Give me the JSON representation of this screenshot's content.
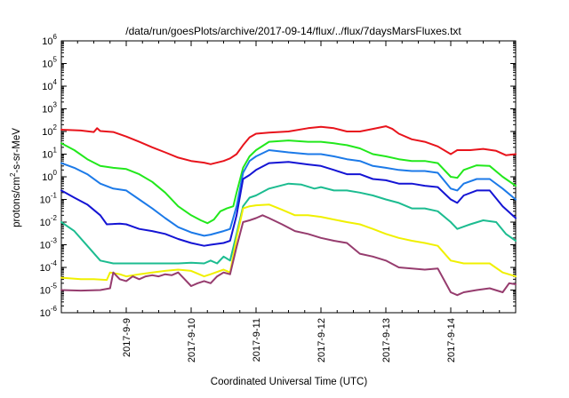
{
  "chart_data": {
    "type": "line",
    "title": "/data/run/goesPlots/archive/2017-09-14/flux/../flux/7daysMarsFluxes.txt",
    "xlabel": "Coordinated Universal Time (UTC)",
    "ylabel": "protons/cm2-s-sr-MeV",
    "ylabel_parts": {
      "a": "protons/cm",
      "b": "2",
      "c": "-s-sr-MeV"
    },
    "yscale": "log",
    "ylim": [
      1e-06,
      1000000.0
    ],
    "y_tick_exponents": [
      "-6",
      "-5",
      "-4",
      "-3",
      "-2",
      "-1",
      "0",
      "1",
      "2",
      "3",
      "4",
      "5",
      "6"
    ],
    "y_tick_base": "10",
    "xlim": [
      0,
      7
    ],
    "x_ticks": [
      {
        "x": 1,
        "label": "2017-9-9"
      },
      {
        "x": 2,
        "label": "2017-9-10"
      },
      {
        "x": 3,
        "label": "2017-9-11"
      },
      {
        "x": 4,
        "label": "2017-9-12"
      },
      {
        "x": 5,
        "label": "2017-9-13"
      },
      {
        "x": 6,
        "label": "2017-9-14"
      }
    ],
    "grid": false,
    "series": [
      {
        "color": "#e8141c",
        "points": [
          [
            0,
            120
          ],
          [
            0.3,
            110
          ],
          [
            0.5,
            95
          ],
          [
            0.55,
            140
          ],
          [
            0.6,
            105
          ],
          [
            0.8,
            95
          ],
          [
            1.0,
            60
          ],
          [
            1.2,
            35
          ],
          [
            1.4,
            20
          ],
          [
            1.6,
            12
          ],
          [
            1.8,
            7
          ],
          [
            2.0,
            5
          ],
          [
            2.2,
            4.2
          ],
          [
            2.3,
            3.6
          ],
          [
            2.5,
            5
          ],
          [
            2.6,
            6.5
          ],
          [
            2.7,
            10
          ],
          [
            2.8,
            25
          ],
          [
            2.9,
            55
          ],
          [
            3.0,
            80
          ],
          [
            3.2,
            90
          ],
          [
            3.5,
            100
          ],
          [
            3.8,
            140
          ],
          [
            4.0,
            160
          ],
          [
            4.2,
            140
          ],
          [
            4.4,
            100
          ],
          [
            4.6,
            100
          ],
          [
            4.8,
            130
          ],
          [
            5.0,
            170
          ],
          [
            5.1,
            130
          ],
          [
            5.2,
            80
          ],
          [
            5.4,
            45
          ],
          [
            5.6,
            35
          ],
          [
            5.8,
            22
          ],
          [
            6.0,
            10
          ],
          [
            6.1,
            15
          ],
          [
            6.3,
            15
          ],
          [
            6.5,
            17
          ],
          [
            6.7,
            14
          ],
          [
            6.85,
            9
          ],
          [
            7.0,
            10
          ]
        ]
      },
      {
        "color": "#22e81c",
        "points": [
          [
            0,
            30
          ],
          [
            0.2,
            15
          ],
          [
            0.4,
            6
          ],
          [
            0.6,
            3
          ],
          [
            0.8,
            2.5
          ],
          [
            1.0,
            2.2
          ],
          [
            1.2,
            1.3
          ],
          [
            1.4,
            0.6
          ],
          [
            1.6,
            0.2
          ],
          [
            1.8,
            0.05
          ],
          [
            2.0,
            0.02
          ],
          [
            2.15,
            0.012
          ],
          [
            2.25,
            0.009
          ],
          [
            2.35,
            0.013
          ],
          [
            2.45,
            0.03
          ],
          [
            2.55,
            0.04
          ],
          [
            2.65,
            0.05
          ],
          [
            2.7,
            0.2
          ],
          [
            2.8,
            2.5
          ],
          [
            2.9,
            8
          ],
          [
            3.0,
            15
          ],
          [
            3.2,
            35
          ],
          [
            3.5,
            40
          ],
          [
            3.8,
            35
          ],
          [
            4.0,
            35
          ],
          [
            4.2,
            30
          ],
          [
            4.4,
            25
          ],
          [
            4.6,
            18
          ],
          [
            4.8,
            10
          ],
          [
            5.0,
            8
          ],
          [
            5.2,
            6
          ],
          [
            5.4,
            5
          ],
          [
            5.6,
            5
          ],
          [
            5.8,
            4
          ],
          [
            6.0,
            1.0
          ],
          [
            6.1,
            0.9
          ],
          [
            6.2,
            2
          ],
          [
            6.4,
            3.2
          ],
          [
            6.6,
            3
          ],
          [
            6.8,
            1.0
          ],
          [
            7.0,
            0.4
          ]
        ]
      },
      {
        "color": "#1c7ae8",
        "points": [
          [
            0,
            4
          ],
          [
            0.2,
            2.5
          ],
          [
            0.4,
            1.3
          ],
          [
            0.6,
            0.5
          ],
          [
            0.8,
            0.3
          ],
          [
            1.0,
            0.25
          ],
          [
            1.2,
            0.1
          ],
          [
            1.4,
            0.04
          ],
          [
            1.6,
            0.015
          ],
          [
            1.8,
            0.006
          ],
          [
            2.0,
            0.0035
          ],
          [
            2.2,
            0.0025
          ],
          [
            2.3,
            0.0028
          ],
          [
            2.5,
            0.004
          ],
          [
            2.6,
            0.005
          ],
          [
            2.7,
            0.05
          ],
          [
            2.8,
            1.5
          ],
          [
            2.9,
            5
          ],
          [
            3.0,
            8
          ],
          [
            3.2,
            15
          ],
          [
            3.5,
            12
          ],
          [
            3.8,
            10
          ],
          [
            4.0,
            10
          ],
          [
            4.2,
            8
          ],
          [
            4.4,
            6
          ],
          [
            4.6,
            5
          ],
          [
            4.8,
            3
          ],
          [
            5.0,
            2.5
          ],
          [
            5.2,
            2
          ],
          [
            5.4,
            1.8
          ],
          [
            5.6,
            1.8
          ],
          [
            5.8,
            1.5
          ],
          [
            6.0,
            0.3
          ],
          [
            6.1,
            0.25
          ],
          [
            6.2,
            0.5
          ],
          [
            6.4,
            0.8
          ],
          [
            6.6,
            0.8
          ],
          [
            6.8,
            0.3
          ],
          [
            7.0,
            0.1
          ]
        ]
      },
      {
        "color": "#1414d4",
        "points": [
          [
            0,
            0.25
          ],
          [
            0.2,
            0.12
          ],
          [
            0.4,
            0.06
          ],
          [
            0.6,
            0.02
          ],
          [
            0.7,
            0.008
          ],
          [
            0.9,
            0.0085
          ],
          [
            1.0,
            0.008
          ],
          [
            1.2,
            0.005
          ],
          [
            1.4,
            0.004
          ],
          [
            1.6,
            0.003
          ],
          [
            1.8,
            0.0018
          ],
          [
            2.0,
            0.0012
          ],
          [
            2.2,
            0.0009
          ],
          [
            2.3,
            0.001
          ],
          [
            2.5,
            0.0012
          ],
          [
            2.6,
            0.0015
          ],
          [
            2.7,
            0.02
          ],
          [
            2.8,
            0.8
          ],
          [
            2.9,
            1.2
          ],
          [
            3.0,
            2
          ],
          [
            3.2,
            4
          ],
          [
            3.5,
            4.5
          ],
          [
            3.8,
            3.5
          ],
          [
            4.0,
            3
          ],
          [
            4.2,
            2
          ],
          [
            4.4,
            1.3
          ],
          [
            4.6,
            1.3
          ],
          [
            4.8,
            0.8
          ],
          [
            5.0,
            0.7
          ],
          [
            5.2,
            0.5
          ],
          [
            5.4,
            0.5
          ],
          [
            5.6,
            0.4
          ],
          [
            5.8,
            0.35
          ],
          [
            6.0,
            0.1
          ],
          [
            6.1,
            0.07
          ],
          [
            6.2,
            0.15
          ],
          [
            6.4,
            0.25
          ],
          [
            6.6,
            0.25
          ],
          [
            6.8,
            0.05
          ],
          [
            7.0,
            0.015
          ]
        ]
      },
      {
        "color": "#1cbc90",
        "points": [
          [
            0,
            0.01
          ],
          [
            0.2,
            0.004
          ],
          [
            0.4,
            0.0009
          ],
          [
            0.6,
            0.0002
          ],
          [
            0.8,
            0.00015
          ],
          [
            1.0,
            0.00015
          ],
          [
            1.2,
            0.00015
          ],
          [
            1.4,
            0.00015
          ],
          [
            1.6,
            0.00015
          ],
          [
            1.8,
            0.00015
          ],
          [
            2.0,
            0.00016
          ],
          [
            2.2,
            0.00015
          ],
          [
            2.3,
            0.0002
          ],
          [
            2.4,
            0.00015
          ],
          [
            2.5,
            0.0003
          ],
          [
            2.6,
            0.0002
          ],
          [
            2.7,
            0.003
          ],
          [
            2.8,
            0.05
          ],
          [
            2.9,
            0.12
          ],
          [
            3.0,
            0.15
          ],
          [
            3.2,
            0.3
          ],
          [
            3.5,
            0.5
          ],
          [
            3.7,
            0.45
          ],
          [
            3.9,
            0.3
          ],
          [
            4.0,
            0.35
          ],
          [
            4.2,
            0.25
          ],
          [
            4.4,
            0.25
          ],
          [
            4.6,
            0.2
          ],
          [
            4.8,
            0.15
          ],
          [
            5.0,
            0.1
          ],
          [
            5.2,
            0.07
          ],
          [
            5.4,
            0.04
          ],
          [
            5.6,
            0.04
          ],
          [
            5.8,
            0.03
          ],
          [
            6.0,
            0.01
          ],
          [
            6.1,
            0.005
          ],
          [
            6.3,
            0.008
          ],
          [
            6.5,
            0.012
          ],
          [
            6.7,
            0.01
          ],
          [
            6.85,
            0.003
          ],
          [
            7.0,
            0.0015
          ]
        ]
      },
      {
        "color": "#f0f000",
        "points": [
          [
            0,
            3.5e-05
          ],
          [
            0.3,
            3e-05
          ],
          [
            0.5,
            3e-05
          ],
          [
            0.7,
            2.8e-05
          ],
          [
            0.75,
            6e-05
          ],
          [
            0.9,
            5e-05
          ],
          [
            1.0,
            4e-05
          ],
          [
            1.2,
            5e-05
          ],
          [
            1.4,
            6e-05
          ],
          [
            1.6,
            7e-05
          ],
          [
            1.8,
            8e-05
          ],
          [
            2.0,
            7e-05
          ],
          [
            2.2,
            4e-05
          ],
          [
            2.3,
            5e-05
          ],
          [
            2.5,
            8e-05
          ],
          [
            2.6,
            6e-05
          ],
          [
            2.7,
            0.002
          ],
          [
            2.8,
            0.04
          ],
          [
            2.9,
            0.05
          ],
          [
            3.0,
            0.055
          ],
          [
            3.2,
            0.06
          ],
          [
            3.4,
            0.035
          ],
          [
            3.6,
            0.02
          ],
          [
            3.8,
            0.02
          ],
          [
            4.0,
            0.017
          ],
          [
            4.2,
            0.013
          ],
          [
            4.4,
            0.01
          ],
          [
            4.6,
            0.008
          ],
          [
            4.8,
            0.005
          ],
          [
            5.0,
            0.003
          ],
          [
            5.2,
            0.002
          ],
          [
            5.4,
            0.0015
          ],
          [
            5.6,
            0.0012
          ],
          [
            5.8,
            0.0009
          ],
          [
            6.0,
            0.0002
          ],
          [
            6.2,
            0.00015
          ],
          [
            6.4,
            0.00015
          ],
          [
            6.6,
            0.00015
          ],
          [
            6.8,
            6e-05
          ],
          [
            7.0,
            4e-05
          ]
        ]
      },
      {
        "color": "#963c6e",
        "points": [
          [
            0,
            1e-05
          ],
          [
            0.3,
            9.5e-06
          ],
          [
            0.6,
            1e-05
          ],
          [
            0.75,
            1.2e-05
          ],
          [
            0.8,
            6e-05
          ],
          [
            0.9,
            3e-05
          ],
          [
            1.0,
            2.5e-05
          ],
          [
            1.1,
            4e-05
          ],
          [
            1.2,
            3e-05
          ],
          [
            1.3,
            4e-05
          ],
          [
            1.4,
            4.5e-05
          ],
          [
            1.5,
            4e-05
          ],
          [
            1.6,
            5e-05
          ],
          [
            1.7,
            4.5e-05
          ],
          [
            1.8,
            6e-05
          ],
          [
            1.9,
            3e-05
          ],
          [
            2.0,
            1.5e-05
          ],
          [
            2.1,
            2e-05
          ],
          [
            2.2,
            2.5e-05
          ],
          [
            2.3,
            2e-05
          ],
          [
            2.4,
            4e-05
          ],
          [
            2.5,
            6e-05
          ],
          [
            2.6,
            5e-05
          ],
          [
            2.7,
            0.0008
          ],
          [
            2.8,
            0.01
          ],
          [
            2.9,
            0.012
          ],
          [
            3.0,
            0.015
          ],
          [
            3.1,
            0.02
          ],
          [
            3.2,
            0.015
          ],
          [
            3.4,
            0.008
          ],
          [
            3.6,
            0.004
          ],
          [
            3.8,
            0.003
          ],
          [
            4.0,
            0.002
          ],
          [
            4.2,
            0.0015
          ],
          [
            4.4,
            0.0012
          ],
          [
            4.6,
            0.0004
          ],
          [
            4.8,
            0.0003
          ],
          [
            5.0,
            0.0002
          ],
          [
            5.2,
            0.0001
          ],
          [
            5.4,
            9e-05
          ],
          [
            5.6,
            8e-05
          ],
          [
            5.8,
            9e-05
          ],
          [
            6.0,
            8e-06
          ],
          [
            6.1,
            6e-06
          ],
          [
            6.2,
            8e-06
          ],
          [
            6.4,
            1e-05
          ],
          [
            6.6,
            1.2e-05
          ],
          [
            6.8,
            8e-06
          ],
          [
            6.9,
            2e-05
          ],
          [
            7.0,
            1.8e-05
          ]
        ]
      }
    ]
  }
}
